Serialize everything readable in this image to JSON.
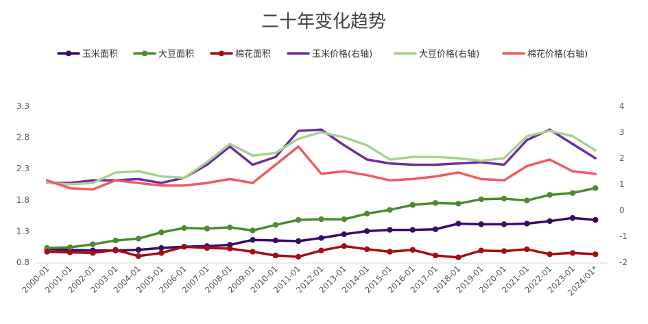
{
  "chart_data": {
    "type": "line",
    "title": "二十年变化趋势",
    "categories": [
      "2000-01",
      "2001-01",
      "2002-01",
      "2003-01",
      "2004-01",
      "2005-01",
      "2006-01",
      "2007-01",
      "2008-01",
      "2009-01",
      "2010-01",
      "2011-01",
      "2012-01",
      "2013-01",
      "2014-01",
      "2015-01",
      "2016-01",
      "2017-01",
      "2018-01",
      "2019-01",
      "2020-01",
      "2021-01",
      "2022-01",
      "2023-01",
      "2024/01*"
    ],
    "ylim_left": [
      0.8,
      3.3
    ],
    "yticks_left": [
      "0.8",
      "1.3",
      "1.8",
      "2.3",
      "2.8",
      "3.3"
    ],
    "ylim_right": [
      -2,
      4
    ],
    "yticks_right": [
      "-2",
      "-1",
      "0",
      "1",
      "2",
      "3",
      "4"
    ],
    "legend_position": "top",
    "grid": false,
    "series": [
      {
        "name": "玉米面积",
        "axis": "left",
        "markers": true,
        "color": "#3a0a6b",
        "values": [
          1.01,
          1.0,
          0.99,
          0.99,
          1.0,
          1.03,
          1.05,
          1.06,
          1.08,
          1.16,
          1.15,
          1.14,
          1.19,
          1.25,
          1.3,
          1.32,
          1.32,
          1.33,
          1.42,
          1.41,
          1.41,
          1.42,
          1.46,
          1.51,
          1.48
        ]
      },
      {
        "name": "大豆面积",
        "axis": "left",
        "markers": true,
        "color": "#4e8a2f",
        "values": [
          1.03,
          1.04,
          1.09,
          1.15,
          1.18,
          1.28,
          1.35,
          1.34,
          1.36,
          1.31,
          1.4,
          1.48,
          1.49,
          1.49,
          1.58,
          1.64,
          1.72,
          1.75,
          1.74,
          1.81,
          1.82,
          1.79,
          1.88,
          1.91,
          1.99
        ]
      },
      {
        "name": "棉花面积",
        "axis": "left",
        "markers": true,
        "color": "#a50d12",
        "values": [
          0.97,
          0.96,
          0.95,
          1.0,
          0.9,
          0.95,
          1.05,
          1.03,
          1.02,
          0.97,
          0.91,
          0.89,
          0.99,
          1.06,
          1.01,
          0.97,
          1.0,
          0.91,
          0.88,
          0.99,
          0.98,
          1.01,
          0.93,
          0.95,
          0.93
        ]
      },
      {
        "name": "玉米价格(右轴)",
        "axis": "right",
        "markers": false,
        "color": "#6a2fa0",
        "values": [
          1.05,
          1.05,
          1.15,
          1.15,
          1.2,
          1.05,
          1.25,
          1.75,
          2.45,
          1.75,
          2.05,
          3.05,
          3.1,
          2.5,
          1.95,
          1.8,
          1.75,
          1.75,
          1.8,
          1.85,
          1.75,
          2.7,
          3.1,
          2.55,
          2.0
        ]
      },
      {
        "name": "大豆价格(右轴)",
        "axis": "right",
        "markers": false,
        "color": "#a9d18e",
        "values": [
          1.05,
          1.0,
          1.05,
          1.45,
          1.5,
          1.3,
          1.25,
          1.85,
          2.55,
          2.1,
          2.2,
          2.75,
          3.0,
          2.8,
          2.5,
          1.95,
          2.05,
          2.05,
          2.0,
          1.9,
          2.0,
          2.85,
          3.05,
          2.85,
          2.3
        ]
      },
      {
        "name": "棉花价格(右轴)",
        "axis": "right",
        "markers": false,
        "color": "#f05a5f",
        "values": [
          1.15,
          0.85,
          0.8,
          1.15,
          1.05,
          0.95,
          0.95,
          1.05,
          1.2,
          1.05,
          1.75,
          2.45,
          1.4,
          1.5,
          1.35,
          1.15,
          1.2,
          1.3,
          1.45,
          1.2,
          1.15,
          1.7,
          1.95,
          1.5,
          1.4
        ]
      }
    ]
  }
}
